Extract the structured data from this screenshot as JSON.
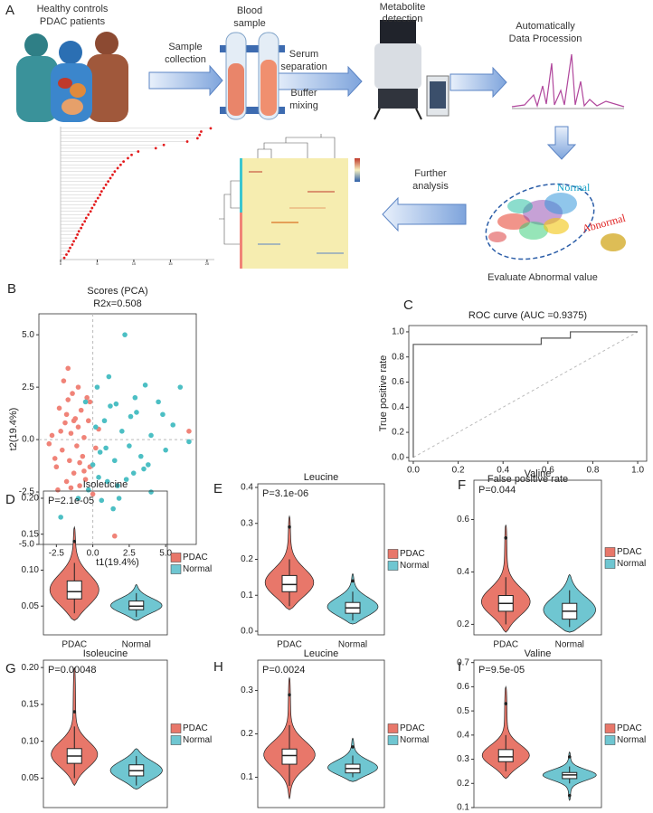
{
  "panel_labels": [
    "A",
    "B",
    "C",
    "D",
    "E",
    "F",
    "G",
    "H",
    "I"
  ],
  "workflow": {
    "subjects": [
      "Healthy controls",
      "PDAC patients"
    ],
    "step1": [
      "Sample",
      "collection"
    ],
    "sample": [
      "Blood",
      "sample"
    ],
    "step2": [
      "Serum",
      "separation"
    ],
    "step3": [
      "Buffer",
      "mixing"
    ],
    "detection": [
      "Metabolite",
      "detection"
    ],
    "processing": [
      "Automatically",
      "Data Procession"
    ],
    "further": [
      "Further",
      "analysis"
    ],
    "normal": "Normal",
    "abnormal": "Abnormal",
    "evaluate": "Evaluate Abnormal value"
  },
  "chart_data": [
    {
      "type": "dot",
      "color": "#e31a1c",
      "categories": [
        null,
        null,
        null,
        null,
        null,
        null,
        null,
        null,
        null,
        null,
        null,
        null,
        null,
        null,
        null,
        null,
        null,
        null,
        null,
        null,
        null,
        null,
        null,
        null,
        null,
        null,
        null,
        null,
        null,
        null,
        null,
        null,
        null,
        null,
        null,
        null,
        null,
        null,
        null,
        null
      ],
      "values": [
        20.5,
        19.2,
        19.0,
        18.7,
        17.3,
        14.1,
        13.0,
        10.6,
        9.7,
        9.2,
        8.6,
        8.2,
        7.8,
        7.4,
        7.1,
        6.8,
        6.5,
        6.2,
        5.9,
        5.6,
        5.4,
        5.1,
        4.8,
        4.6,
        4.3,
        4.1,
        3.8,
        3.5,
        3.3,
        3.0,
        2.8,
        2.5,
        2.3,
        2.1,
        1.8,
        1.6,
        1.3,
        1.1,
        0.8,
        0.5
      ],
      "xlim": [
        0,
        21
      ],
      "xticks": [
        0,
        5,
        10,
        15,
        20
      ]
    },
    {
      "type": "scatter",
      "title": "Scores (PCA)",
      "subtitle": "R2x=0.508",
      "x_label": "t1(19.4%)",
      "y_label": "t2(19.4%)",
      "xlim": [
        -3.7,
        7.1
      ],
      "ylim": [
        -5,
        6
      ],
      "xticks": [
        -2.5,
        {
          "value": 0,
          "label": "0.0"
        },
        2.5,
        {
          "value": 5,
          "label": "5.0"
        }
      ],
      "yticks": [
        {
          "value": -5,
          "label": "-5.0"
        },
        -2.5,
        {
          "value": 0,
          "label": "0.0"
        },
        2.5,
        {
          "value": 5,
          "label": "5.0"
        }
      ],
      "series": [
        {
          "color": "#f08378",
          "x": [
            -2.8,
            -2.5,
            -2.3,
            -2.1,
            -2.0,
            -1.9,
            -1.8,
            -1.7,
            -1.6,
            -1.5,
            -1.4,
            -1.3,
            -1.2,
            -1.1,
            -1.0,
            -0.9,
            -0.8,
            -0.7,
            -0.6,
            -0.5,
            -0.4,
            -0.3,
            -0.2,
            0.0,
            0.2,
            0.4,
            -2.6,
            -2.2,
            -1.8,
            -1.5,
            -1.0,
            -0.6,
            -2.4,
            -1.3,
            -0.9,
            1.5,
            6.6,
            -3.0,
            -1.7,
            -0.2
          ],
          "y": [
            0.2,
            -1.3,
            1.5,
            -0.5,
            2.8,
            0.8,
            -2.0,
            1.9,
            -1.0,
            0.3,
            2.2,
            -1.6,
            1.0,
            -0.3,
            0.6,
            -2.2,
            1.4,
            -0.8,
            0.1,
            -1.9,
            2.0,
            0.9,
            -1.3,
            -2.6,
            -0.4,
            0.5,
            -0.9,
            0.4,
            1.2,
            -2.3,
            2.5,
            -1.5,
            -2.4,
            0.9,
            -1.1,
            -4.6,
            0.4,
            -0.2,
            3.4,
            1.8
          ]
        },
        {
          "color": "#4cbfc4",
          "x": [
            -2.2,
            -0.5,
            0.0,
            0.3,
            0.5,
            0.8,
            1.0,
            1.2,
            1.5,
            1.8,
            2.0,
            2.2,
            2.5,
            2.8,
            3.0,
            3.3,
            3.6,
            4.0,
            4.5,
            5.0,
            5.5,
            6.0,
            6.6,
            -0.3,
            0.6,
            1.1,
            1.7,
            2.3,
            2.9,
            3.5,
            0.2,
            0.9,
            1.4,
            2.6,
            3.8,
            4.8,
            -1.0,
            0.4,
            1.6,
            4.0
          ],
          "y": [
            -3.7,
            1.8,
            -1.2,
            2.5,
            -0.6,
            0.9,
            -2.0,
            1.6,
            -1.0,
            -2.8,
            0.4,
            5.0,
            -0.3,
            -1.6,
            1.3,
            -0.8,
            2.6,
            0.2,
            1.8,
            -0.5,
            0.7,
            2.5,
            -0.1,
            -2.4,
            -2.9,
            3.0,
            -2.2,
            -1.9,
            2.0,
            -1.4,
            0.6,
            -0.4,
            -3.3,
            1.1,
            -1.2,
            1.2,
            -2.8,
            -1.8,
            1.7,
            -2.5
          ]
        }
      ]
    },
    {
      "type": "line",
      "title": "ROC curve (AUC =0.9375)",
      "x_label": "False positive rate",
      "y_label": "True positive rate",
      "xlim": [
        -0.02,
        1.04
      ],
      "ylim": [
        -0.03,
        1.05
      ],
      "xticks": [
        {
          "value": 0,
          "label": "0.0"
        },
        0.2,
        0.4,
        0.6,
        0.8,
        {
          "value": 1,
          "label": "1.0"
        }
      ],
      "yticks": [
        {
          "value": 0,
          "label": "0.0"
        },
        0.2,
        0.4,
        0.6,
        0.8,
        {
          "value": 1,
          "label": "1.0"
        }
      ],
      "series": [
        {
          "color": "#555555",
          "x": [
            0,
            0,
            0.57,
            0.57,
            0.7,
            0.7,
            1
          ],
          "y": [
            0,
            0.9,
            0.9,
            0.95,
            0.95,
            1,
            1
          ]
        }
      ]
    },
    {
      "type": "violin",
      "title": "Isoleucine",
      "annotation": "P=2.1e-05",
      "ylim": [
        0.01,
        0.21
      ],
      "yticks": [
        0.05,
        {
          "value": 0.1,
          "label": "0.10"
        },
        0.15,
        {
          "value": 0.2,
          "label": "0.20"
        }
      ],
      "legend": "right",
      "series": [
        {
          "name": "PDAC",
          "color": "#e8776a",
          "min": 0.03,
          "whisker_low": 0.04,
          "q1": 0.06,
          "median": 0.07,
          "q3": 0.085,
          "whisker_high": 0.11,
          "max": 0.16,
          "outliers": [
            0.14
          ]
        },
        {
          "name": "Normal",
          "color": "#6fc6d1",
          "min": 0.03,
          "whisker_low": 0.035,
          "q1": 0.045,
          "median": 0.05,
          "q3": 0.057,
          "whisker_high": 0.068,
          "max": 0.08,
          "outliers": []
        }
      ]
    },
    {
      "type": "violin",
      "title": "Leucine",
      "annotation": "P=3.1e-06",
      "ylim": [
        -0.01,
        0.41
      ],
      "yticks": [
        {
          "value": 0,
          "label": "0.0"
        },
        0.1,
        0.2,
        0.3,
        0.4
      ],
      "legend": "right",
      "series": [
        {
          "name": "PDAC",
          "color": "#e8776a",
          "min": 0.06,
          "whisker_low": 0.07,
          "q1": 0.11,
          "median": 0.13,
          "q3": 0.155,
          "whisker_high": 0.2,
          "max": 0.32,
          "outliers": [
            0.29
          ]
        },
        {
          "name": "Normal",
          "color": "#6fc6d1",
          "min": 0.02,
          "whisker_low": 0.03,
          "q1": 0.05,
          "median": 0.065,
          "q3": 0.08,
          "whisker_high": 0.11,
          "max": 0.16,
          "outliers": [
            0.14
          ]
        }
      ]
    },
    {
      "type": "violin",
      "title": "Valine",
      "annotation": "P=0.044",
      "ylim": [
        0.16,
        0.75
      ],
      "yticks": [
        0.2,
        0.4,
        0.6
      ],
      "legend": "right",
      "series": [
        {
          "name": "PDAC",
          "color": "#e8776a",
          "min": 0.17,
          "whisker_low": 0.2,
          "q1": 0.25,
          "median": 0.28,
          "q3": 0.31,
          "whisker_high": 0.38,
          "max": 0.58,
          "outliers": [
            0.53
          ]
        },
        {
          "name": "Normal",
          "color": "#6fc6d1",
          "min": 0.17,
          "whisker_low": 0.19,
          "q1": 0.22,
          "median": 0.25,
          "q3": 0.28,
          "whisker_high": 0.33,
          "max": 0.39,
          "outliers": []
        }
      ]
    },
    {
      "type": "violin",
      "title": "Isoleucine",
      "annotation": "P=0.00048",
      "ylim": [
        0.01,
        0.21
      ],
      "yticks": [
        0.05,
        {
          "value": 0.1,
          "label": "0.10"
        },
        0.15,
        {
          "value": 0.2,
          "label": "0.20"
        }
      ],
      "legend": "right",
      "series": [
        {
          "name": "PDAC",
          "color": "#e8776a",
          "min": 0.04,
          "whisker_low": 0.05,
          "q1": 0.07,
          "median": 0.08,
          "q3": 0.09,
          "whisker_high": 0.12,
          "max": 0.2,
          "outliers": [
            0.14
          ]
        },
        {
          "name": "Normal",
          "color": "#6fc6d1",
          "min": 0.035,
          "whisker_low": 0.04,
          "q1": 0.053,
          "median": 0.06,
          "q3": 0.068,
          "whisker_high": 0.08,
          "max": 0.09,
          "outliers": []
        }
      ]
    },
    {
      "type": "violin",
      "title": "Leucine",
      "annotation": "P=0.0024",
      "ylim": [
        0.03,
        0.37
      ],
      "yticks": [
        0.1,
        0.2,
        0.3
      ],
      "legend": "right",
      "series": [
        {
          "name": "PDAC",
          "color": "#e8776a",
          "min": 0.05,
          "whisker_low": 0.08,
          "q1": 0.13,
          "median": 0.15,
          "q3": 0.165,
          "whisker_high": 0.22,
          "max": 0.33,
          "outliers": [
            0.29
          ]
        },
        {
          "name": "Normal",
          "color": "#6fc6d1",
          "min": 0.09,
          "whisker_low": 0.1,
          "q1": 0.11,
          "median": 0.12,
          "q3": 0.13,
          "whisker_high": 0.15,
          "max": 0.19,
          "outliers": [
            0.17
          ]
        }
      ]
    },
    {
      "type": "violin",
      "title": "Valine",
      "annotation": "P=9.5e-05",
      "ylim": [
        0.1,
        0.71
      ],
      "yticks": [
        0.1,
        0.2,
        0.3,
        0.4,
        0.5,
        0.6,
        0.7
      ],
      "legend": "right",
      "series": [
        {
          "name": "PDAC",
          "color": "#e8776a",
          "min": 0.22,
          "whisker_low": 0.25,
          "q1": 0.29,
          "median": 0.31,
          "q3": 0.34,
          "whisker_high": 0.4,
          "max": 0.6,
          "outliers": [
            0.53
          ]
        },
        {
          "name": "Normal",
          "color": "#6fc6d1",
          "min": 0.13,
          "whisker_low": 0.2,
          "q1": 0.22,
          "median": 0.235,
          "q3": 0.245,
          "whisker_high": 0.27,
          "max": 0.33,
          "outliers": [
            0.31,
            0.15
          ]
        }
      ]
    }
  ]
}
